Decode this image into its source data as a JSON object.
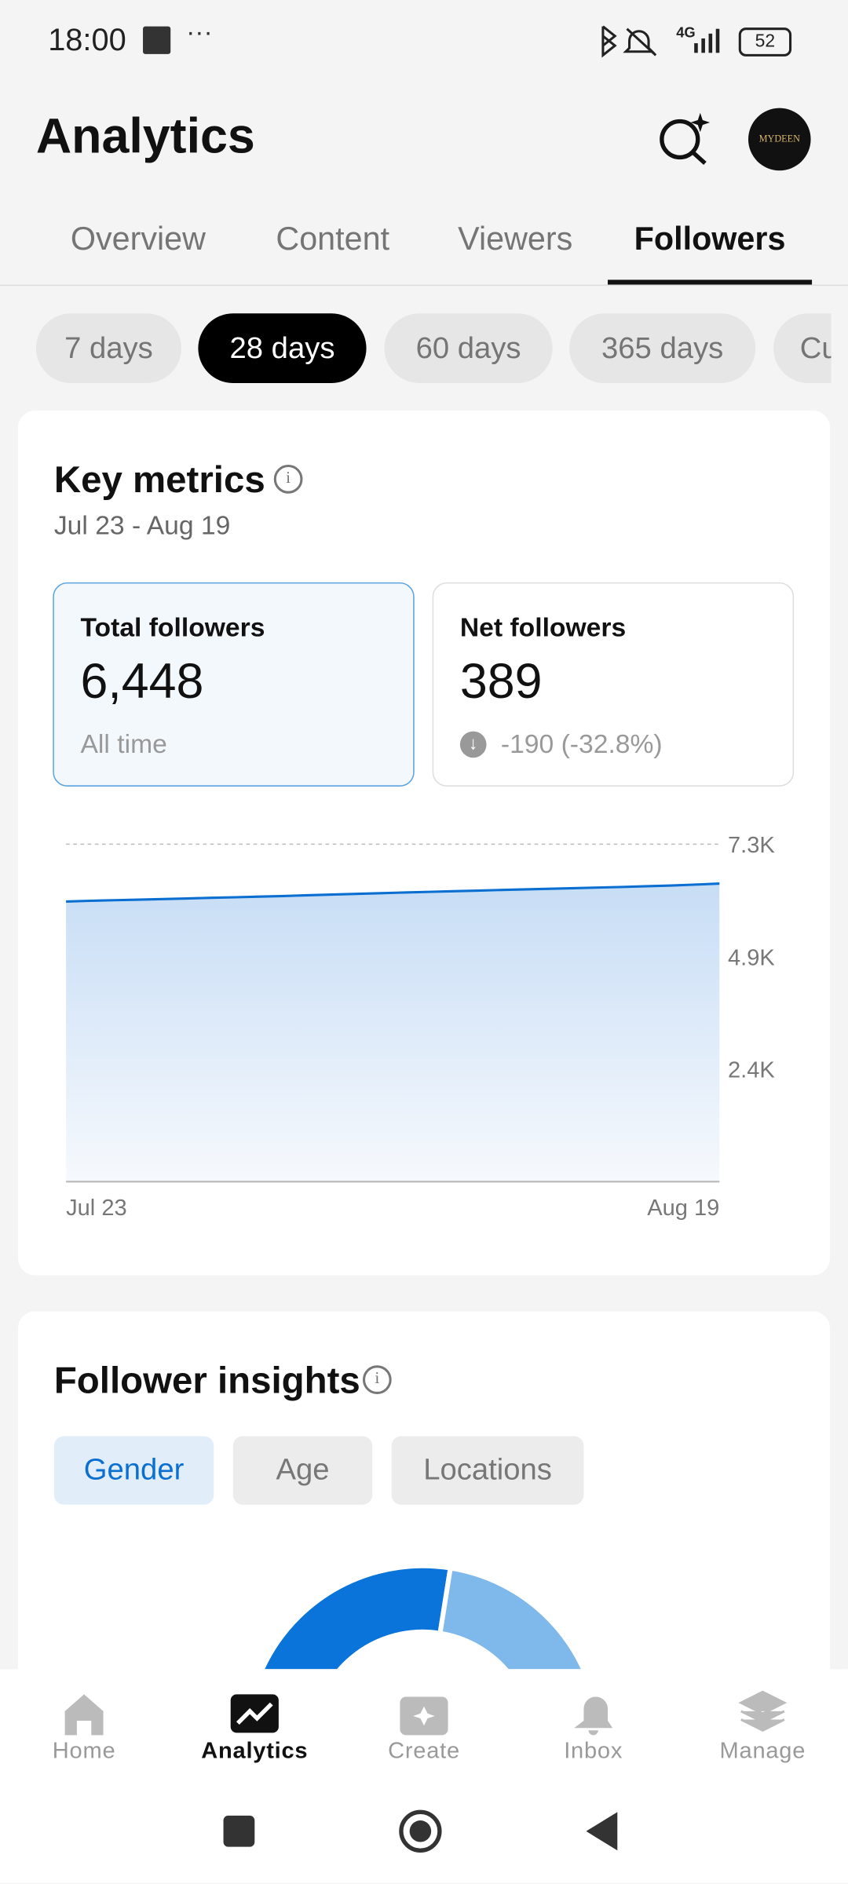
{
  "status_bar": {
    "time": "18:00",
    "network": "4G",
    "battery": "52"
  },
  "header": {
    "title": "Analytics",
    "avatar_text": "MYDEEN"
  },
  "tabs": [
    "Overview",
    "Content",
    "Viewers",
    "Followers"
  ],
  "periods": [
    "7 days",
    "28 days",
    "60 days",
    "365 days",
    "Cu"
  ],
  "key_metrics": {
    "title": "Key metrics",
    "date_range": "Jul 23 - Aug 19",
    "cards": [
      {
        "label": "Total followers",
        "value": "6,448",
        "note": "All time"
      },
      {
        "label": "Net followers",
        "value": "389",
        "note": "-190 (-32.8%)"
      }
    ]
  },
  "chart_data": [
    {
      "type": "area",
      "categories": [
        "Jul 23",
        null,
        null,
        null,
        null,
        null,
        null,
        null,
        null,
        null,
        null,
        null,
        null,
        null,
        null,
        null,
        null,
        null,
        null,
        null,
        null,
        null,
        null,
        null,
        null,
        null,
        null,
        "Aug 19"
      ],
      "values": [
        6059,
        6075,
        6088,
        6100,
        6112,
        6125,
        6140,
        6152,
        6165,
        6178,
        6195,
        6210,
        6225,
        6240,
        6255,
        6268,
        6282,
        6295,
        6310,
        6322,
        6335,
        6348,
        6362,
        6375,
        6390,
        6405,
        6425,
        6448
      ],
      "color": "#0a6fd1",
      "ylim": [
        0,
        7300
      ],
      "yticks": [
        {
          "value": 2433,
          "label": "2.4K"
        },
        {
          "value": 4866,
          "label": "4.9K"
        },
        {
          "value": 7300,
          "label": "7.3K"
        }
      ],
      "grid": true
    },
    {
      "type": "pie",
      "values": [
        55,
        45
      ],
      "colors": [
        "#0a74da",
        "#7fb8ea"
      ]
    }
  ],
  "insights": {
    "title": "Follower insights",
    "filters": [
      "Gender",
      "Age",
      "Locations"
    ]
  },
  "nav": [
    "Home",
    "Analytics",
    "Create",
    "Inbox",
    "Manage"
  ]
}
